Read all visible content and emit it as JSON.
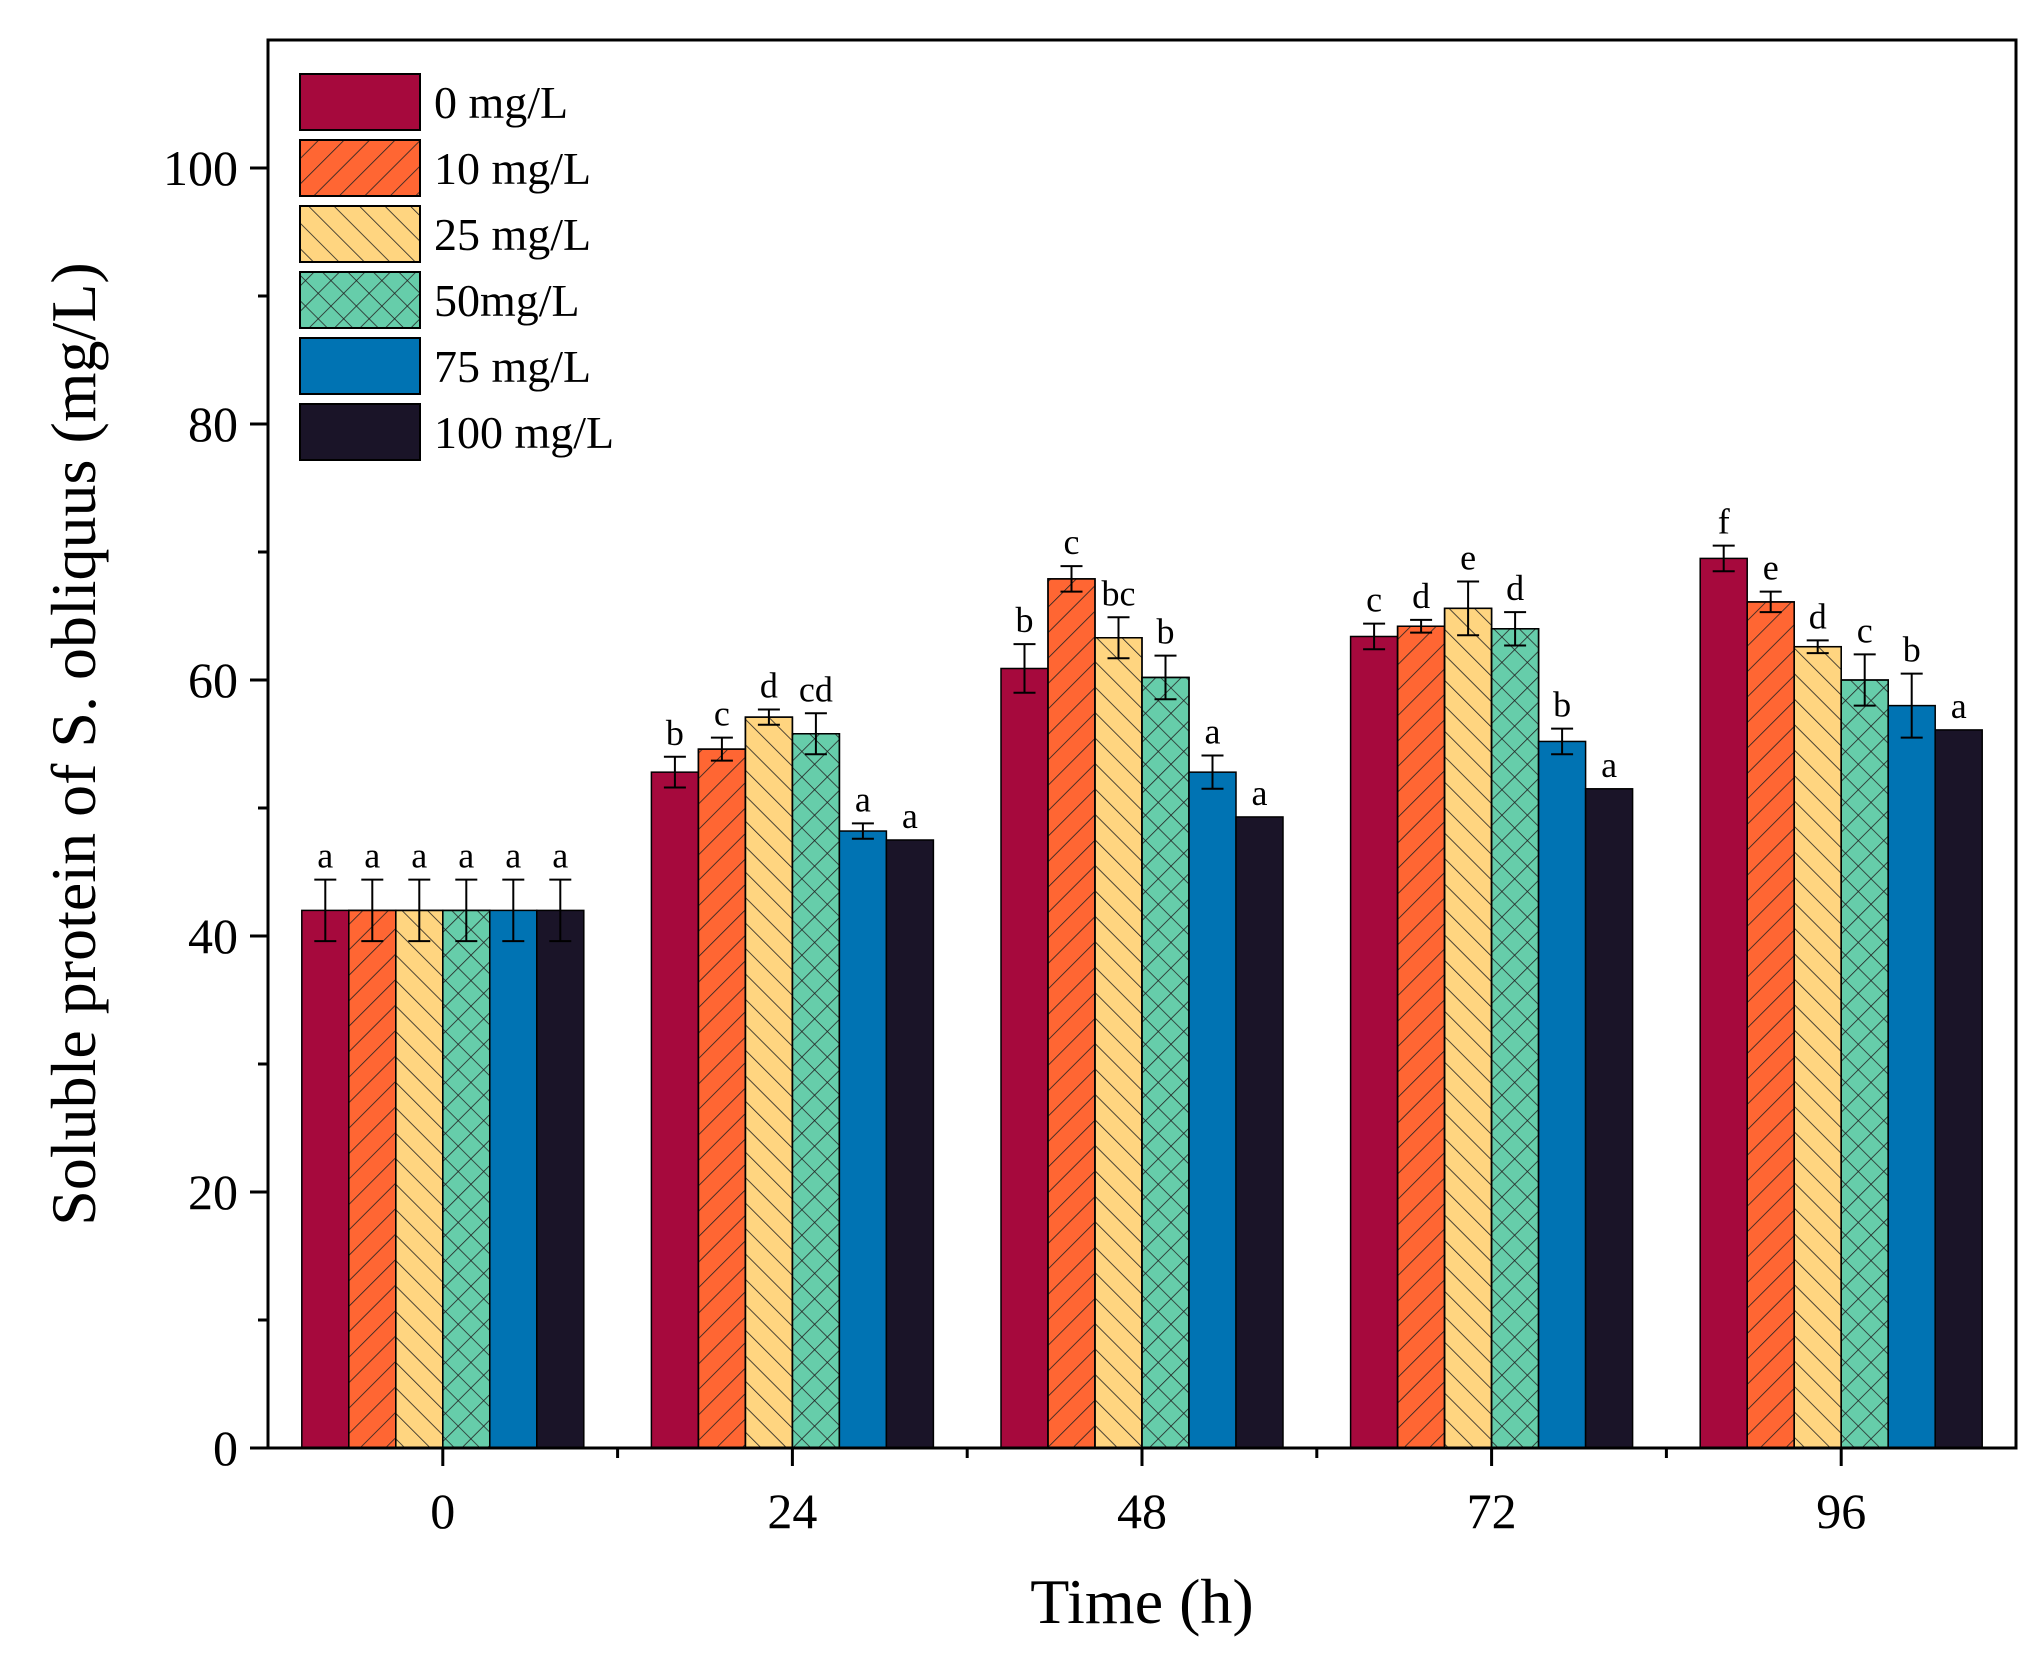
{
  "chart_data": {
    "type": "bar",
    "xlabel": "Time (h)",
    "ylabel": "Soluble protein of S. obliquus (mg/L)",
    "categories": [
      "0",
      "24",
      "48",
      "72",
      "96"
    ],
    "ylim": [
      0,
      110
    ],
    "yticks": [
      0,
      20,
      40,
      60,
      80,
      100
    ],
    "grid": false,
    "legend_position": "top-left",
    "series": [
      {
        "name": "0 mg/L",
        "color": "#A6093D",
        "pattern": "solid",
        "values": [
          42.0,
          52.8,
          60.9,
          63.4,
          69.5
        ],
        "errors": [
          2.4,
          1.2,
          1.9,
          1.0,
          1.0
        ],
        "labels": [
          "a",
          "b",
          "b",
          "c",
          "f"
        ]
      },
      {
        "name": "10 mg/L",
        "color": "#FF6633",
        "pattern": "diagonal-right",
        "values": [
          42.0,
          54.6,
          67.9,
          64.2,
          66.1
        ],
        "errors": [
          2.4,
          0.9,
          1.0,
          0.5,
          0.8
        ],
        "labels": [
          "a",
          "c",
          "c",
          "d",
          "e"
        ]
      },
      {
        "name": "25 mg/L",
        "color": "#FFD580",
        "pattern": "diagonal-left",
        "values": [
          42.0,
          57.1,
          63.3,
          65.6,
          62.6
        ],
        "errors": [
          2.4,
          0.6,
          1.6,
          2.1,
          0.5
        ],
        "labels": [
          "a",
          "d",
          "bc",
          "e",
          "d"
        ]
      },
      {
        "name": "50mg/L",
        "color": "#66CDAA",
        "pattern": "crosshatch",
        "values": [
          42.0,
          55.8,
          60.2,
          64.0,
          60.0
        ],
        "errors": [
          2.4,
          1.6,
          1.7,
          1.3,
          2.0
        ],
        "labels": [
          "a",
          "cd",
          "b",
          "d",
          "c"
        ]
      },
      {
        "name": "75 mg/L",
        "color": "#0073B3",
        "pattern": "solid",
        "values": [
          42.0,
          48.2,
          52.8,
          55.2,
          58.0
        ],
        "errors": [
          2.4,
          0.6,
          1.3,
          1.0,
          2.5
        ],
        "labels": [
          "a",
          "a",
          "a",
          "b",
          "b"
        ]
      },
      {
        "name": "100 mg/L",
        "color": "#1A1428",
        "pattern": "solid",
        "values": [
          42.0,
          47.5,
          49.3,
          51.5,
          56.1
        ],
        "errors": [
          2.4,
          0,
          0,
          0,
          0
        ],
        "labels": [
          "a",
          "a",
          "a",
          "a",
          "a"
        ]
      }
    ]
  }
}
